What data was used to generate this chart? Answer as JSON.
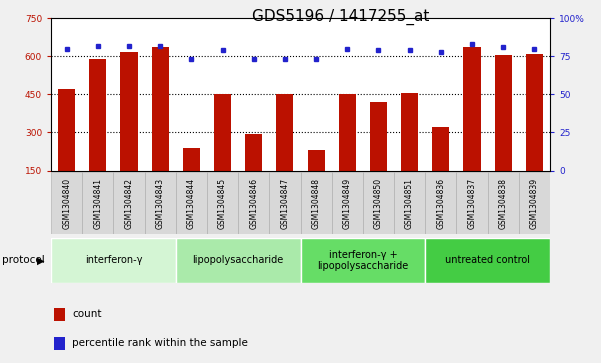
{
  "title": "GDS5196 / 1417255_at",
  "samples": [
    "GSM1304840",
    "GSM1304841",
    "GSM1304842",
    "GSM1304843",
    "GSM1304844",
    "GSM1304845",
    "GSM1304846",
    "GSM1304847",
    "GSM1304848",
    "GSM1304849",
    "GSM1304850",
    "GSM1304851",
    "GSM1304836",
    "GSM1304837",
    "GSM1304838",
    "GSM1304839"
  ],
  "counts": [
    470,
    590,
    615,
    635,
    240,
    453,
    295,
    450,
    230,
    453,
    420,
    455,
    320,
    635,
    605,
    610
  ],
  "percentile_ranks": [
    80,
    82,
    82,
    82,
    73,
    79,
    73,
    73,
    73,
    80,
    79,
    79,
    78,
    83,
    81,
    80
  ],
  "groups": [
    {
      "label": "interferon-γ",
      "start": 0,
      "end": 3,
      "color": "#d4f5d4"
    },
    {
      "label": "lipopolysaccharide",
      "start": 4,
      "end": 7,
      "color": "#aaeaaa"
    },
    {
      "label": "interferon-γ +\nlipopolysaccharide",
      "start": 8,
      "end": 11,
      "color": "#66dd66"
    },
    {
      "label": "untreated control",
      "start": 12,
      "end": 15,
      "color": "#44cc44"
    }
  ],
  "ylim_left": [
    150,
    750
  ],
  "ylim_right": [
    0,
    100
  ],
  "yticks_left": [
    150,
    300,
    450,
    600,
    750
  ],
  "yticks_right": [
    0,
    25,
    50,
    75,
    100
  ],
  "bar_color": "#bb1100",
  "dot_color": "#2222cc",
  "bg_color": "#f0f0f0",
  "plot_bg": "#ffffff",
  "title_fontsize": 11,
  "tick_fontsize": 6.5,
  "sample_fontsize": 5.5,
  "group_fontsize": 7,
  "legend_fontsize": 7.5
}
